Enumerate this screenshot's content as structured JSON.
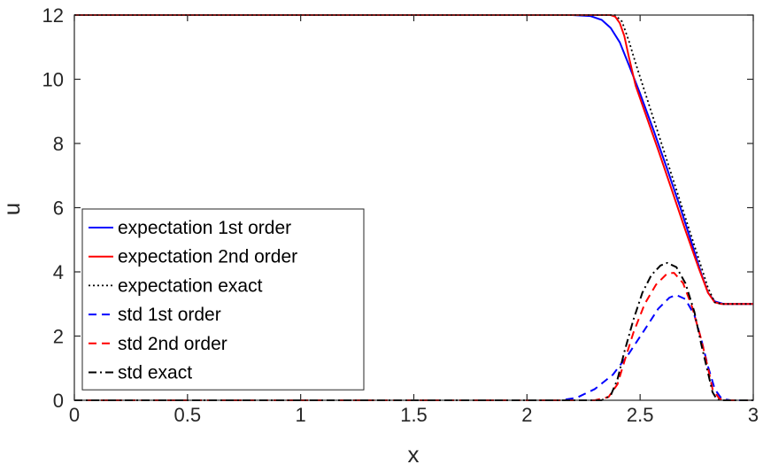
{
  "chart_data": {
    "type": "line",
    "title": "",
    "xlabel": "x",
    "ylabel": "u",
    "xlim": [
      0,
      3
    ],
    "ylim": [
      0,
      12
    ],
    "xticks": [
      0,
      0.5,
      1,
      1.5,
      2,
      2.5,
      3
    ],
    "xtick_labels": [
      "0",
      "0.5",
      "1",
      "1.5",
      "2",
      "2.5",
      "3"
    ],
    "yticks": [
      0,
      2,
      4,
      6,
      8,
      10,
      12
    ],
    "ytick_labels": [
      "0",
      "2",
      "4",
      "6",
      "8",
      "10",
      "12"
    ],
    "grid": false,
    "legend_position": "lower-left",
    "series": [
      {
        "name": "expectation 1st order",
        "color": "#0000ff",
        "style": "solid",
        "points": [
          [
            0,
            12
          ],
          [
            2.2,
            12
          ],
          [
            2.28,
            11.97
          ],
          [
            2.33,
            11.85
          ],
          [
            2.37,
            11.6
          ],
          [
            2.41,
            11.15
          ],
          [
            2.45,
            10.45
          ],
          [
            2.5,
            9.55
          ],
          [
            2.56,
            8.4
          ],
          [
            2.62,
            7.2
          ],
          [
            2.68,
            5.95
          ],
          [
            2.73,
            4.85
          ],
          [
            2.77,
            3.95
          ],
          [
            2.8,
            3.35
          ],
          [
            2.83,
            3.08
          ],
          [
            2.87,
            3.0
          ],
          [
            3,
            3
          ]
        ]
      },
      {
        "name": "expectation 2nd order",
        "color": "#ff0000",
        "style": "solid",
        "points": [
          [
            0,
            12
          ],
          [
            2.37,
            12
          ],
          [
            2.39,
            11.95
          ],
          [
            2.41,
            11.75
          ],
          [
            2.43,
            11.35
          ],
          [
            2.45,
            10.7
          ],
          [
            2.48,
            9.8
          ],
          [
            2.52,
            9.0
          ],
          [
            2.58,
            7.8
          ],
          [
            2.64,
            6.55
          ],
          [
            2.7,
            5.3
          ],
          [
            2.76,
            4.1
          ],
          [
            2.8,
            3.35
          ],
          [
            2.83,
            3.05
          ],
          [
            2.86,
            3.0
          ],
          [
            3,
            3
          ]
        ]
      },
      {
        "name": "expectation exact",
        "color": "#000000",
        "style": "dotted",
        "points": [
          [
            0,
            12
          ],
          [
            2.39,
            12
          ],
          [
            2.42,
            11.8
          ],
          [
            2.45,
            11.2
          ],
          [
            2.48,
            10.5
          ],
          [
            2.8,
            3.5
          ],
          [
            2.83,
            3.05
          ],
          [
            2.86,
            3.0
          ],
          [
            3,
            3
          ]
        ]
      },
      {
        "name": "std 1st order",
        "color": "#0000ff",
        "style": "dashed",
        "points": [
          [
            0,
            0
          ],
          [
            2.15,
            0
          ],
          [
            2.22,
            0.08
          ],
          [
            2.3,
            0.35
          ],
          [
            2.38,
            0.8
          ],
          [
            2.45,
            1.45
          ],
          [
            2.52,
            2.2
          ],
          [
            2.58,
            2.85
          ],
          [
            2.63,
            3.2
          ],
          [
            2.66,
            3.28
          ],
          [
            2.7,
            3.15
          ],
          [
            2.74,
            2.65
          ],
          [
            2.77,
            1.9
          ],
          [
            2.8,
            1.05
          ],
          [
            2.83,
            0.35
          ],
          [
            2.86,
            0.05
          ],
          [
            2.9,
            0
          ],
          [
            3,
            0
          ]
        ]
      },
      {
        "name": "std 2nd order",
        "color": "#ff0000",
        "style": "dashed",
        "points": [
          [
            0,
            0
          ],
          [
            2.3,
            0
          ],
          [
            2.36,
            0.1
          ],
          [
            2.4,
            0.5
          ],
          [
            2.43,
            1.2
          ],
          [
            2.47,
            2.1
          ],
          [
            2.52,
            3.0
          ],
          [
            2.57,
            3.6
          ],
          [
            2.62,
            3.95
          ],
          [
            2.65,
            3.97
          ],
          [
            2.69,
            3.65
          ],
          [
            2.73,
            2.9
          ],
          [
            2.77,
            1.9
          ],
          [
            2.8,
            1.0
          ],
          [
            2.82,
            0.35
          ],
          [
            2.85,
            0.05
          ],
          [
            2.88,
            0
          ],
          [
            3,
            0
          ]
        ]
      },
      {
        "name": "std exact",
        "color": "#000000",
        "style": "dashdot",
        "points": [
          [
            0,
            0
          ],
          [
            2.33,
            0
          ],
          [
            2.37,
            0.15
          ],
          [
            2.4,
            0.65
          ],
          [
            2.43,
            1.5
          ],
          [
            2.47,
            2.5
          ],
          [
            2.51,
            3.35
          ],
          [
            2.55,
            3.9
          ],
          [
            2.59,
            4.2
          ],
          [
            2.62,
            4.28
          ],
          [
            2.66,
            4.15
          ],
          [
            2.7,
            3.65
          ],
          [
            2.74,
            2.75
          ],
          [
            2.77,
            1.75
          ],
          [
            2.8,
            0.85
          ],
          [
            2.82,
            0.25
          ],
          [
            2.84,
            0.02
          ],
          [
            2.86,
            0
          ],
          [
            3,
            0
          ]
        ]
      }
    ]
  }
}
